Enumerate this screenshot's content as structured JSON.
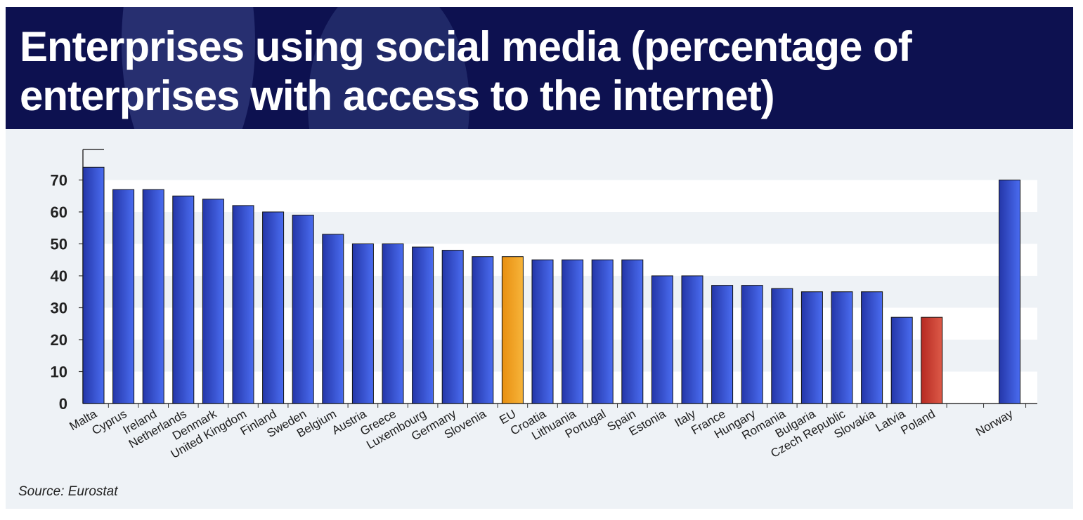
{
  "header": {
    "title": "Enterprises using social media (percentage of enterprises with access to the internet)"
  },
  "footer": {
    "source": "Source: Eurostat"
  },
  "colors": {
    "header_bg": "#0d1150",
    "bar_default": "#3447c8",
    "bar_eu": "#f0a21e",
    "bar_poland": "#c9352b"
  },
  "chart_data": {
    "type": "bar",
    "title": "Enterprises using social media (percentage of enterprises with access to the internet)",
    "xlabel": "",
    "ylabel": "",
    "ylim": [
      0,
      80
    ],
    "yticks": [
      0,
      10,
      20,
      30,
      40,
      50,
      60,
      70
    ],
    "grid": "alternating horizontal bands",
    "categories": [
      "Malta",
      "Cyprus",
      "Ireland",
      "Netherlands",
      "Denmark",
      "United Kingdom",
      "Finland",
      "Sweden",
      "Belgium",
      "Austria",
      "Greece",
      "Luxembourg",
      "Germany",
      "Slovenia",
      "EU",
      "Croatia",
      "Lithuania",
      "Portugal",
      "Spain",
      "Estonia",
      "Italy",
      "France",
      "Hungary",
      "Romania",
      "Bulgaria",
      "Czech Republic",
      "Slovakia",
      "Latvia",
      "Poland",
      "Norway"
    ],
    "values": [
      74,
      67,
      67,
      65,
      64,
      62,
      60,
      59,
      53,
      50,
      50,
      49,
      48,
      46,
      46,
      45,
      45,
      45,
      45,
      40,
      40,
      37,
      37,
      36,
      35,
      35,
      35,
      27,
      27,
      70
    ],
    "highlight": {
      "EU": "bar_eu",
      "Poland": "bar_poland"
    }
  }
}
